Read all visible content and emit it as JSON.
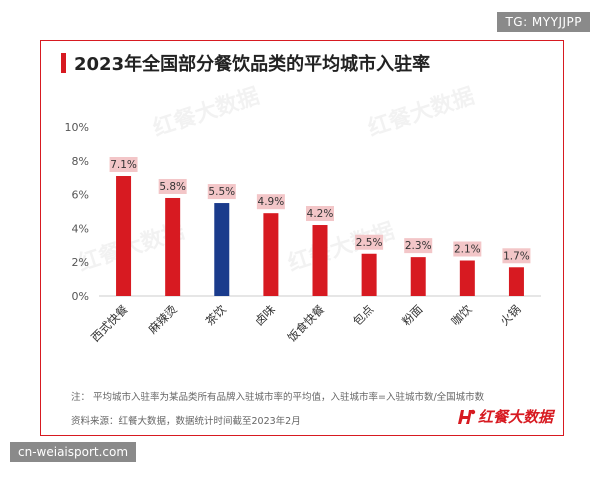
{
  "corner_tag": "TG: MYYJJPP",
  "watermark_tag": "cn-weiaisport.com",
  "title": "2023年全国部分餐饮品类的平均城市入驻率",
  "footnotes": {
    "note": "注：  平均城市入驻率为某品类所有品牌入驻城市率的平均值，入驻城市率=入驻城市数/全国城市数",
    "source": "资料来源：红餐大数据，数据统计时间截至2023年2月"
  },
  "brand": {
    "name": "红餐大数据",
    "watermark_text": "红餐大数据"
  },
  "colors": {
    "accent": "#d71a21",
    "highlight": "#1a3b8c",
    "label_bg": "#f3c6c8"
  },
  "chart_data": {
    "type": "bar",
    "title": "2023年全国部分餐饮品类的平均城市入驻率",
    "categories": [
      "西式快餐",
      "麻辣烫",
      "茶饮",
      "卤味",
      "饭食快餐",
      "包点",
      "粉面",
      "咖饮",
      "火锅"
    ],
    "values": [
      7.1,
      5.8,
      5.5,
      4.9,
      4.2,
      2.5,
      2.3,
      2.1,
      1.7
    ],
    "data_labels": [
      "7.1%",
      "5.8%",
      "5.5%",
      "4.9%",
      "4.2%",
      "2.5%",
      "2.3%",
      "2.1%",
      "1.7%"
    ],
    "highlighted_category": "茶饮",
    "ylim": [
      0,
      10
    ],
    "yticks": [
      0,
      2,
      4,
      6,
      8,
      10
    ],
    "ytick_labels": [
      "0%",
      "2%",
      "4%",
      "6%",
      "8%",
      "10%"
    ],
    "xlabel": "",
    "ylabel": "",
    "grid": false,
    "legend": "none"
  }
}
